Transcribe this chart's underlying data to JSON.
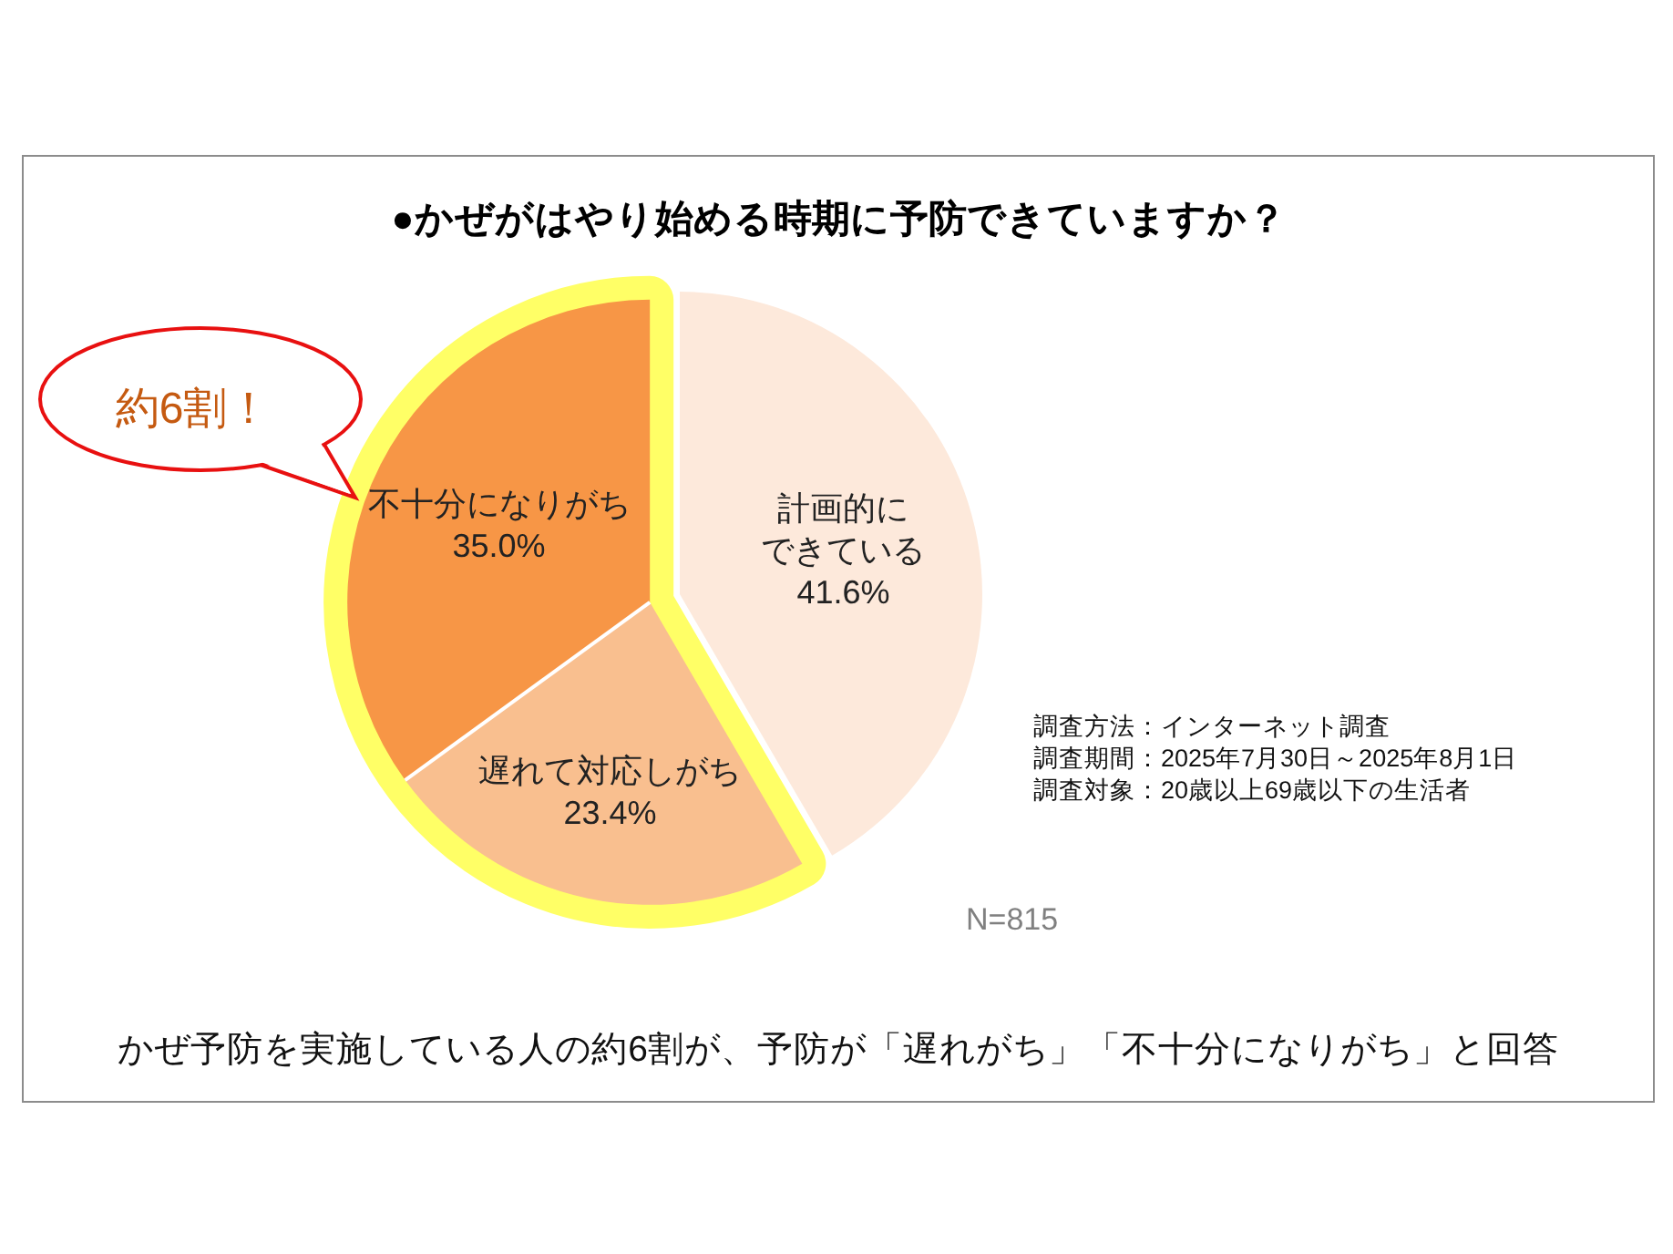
{
  "chart_data": {
    "type": "pie",
    "title": "●かぜがはやり始める時期に予防できていますか？",
    "categories": [
      "計画的にできている",
      "遅れて対応しがち",
      "不十分になりがち"
    ],
    "values": [
      41.6,
      23.4,
      35.0
    ],
    "value_labels": [
      "41.6%",
      "23.4%",
      "35.0%"
    ],
    "colors": [
      "#fde9db",
      "#f9bf8f",
      "#f79646"
    ],
    "annotations": [
      "約6割！",
      "調査方法：インターネット調査",
      "調査期間：2025年7月30日～2025年8月1日",
      "調査対象：20歳以上69歳以下の生活者",
      "N=815",
      "かぜ予防を実施している人の約6割が、予防が「遅れがち」「不十分になりがち」と回答"
    ]
  }
}
